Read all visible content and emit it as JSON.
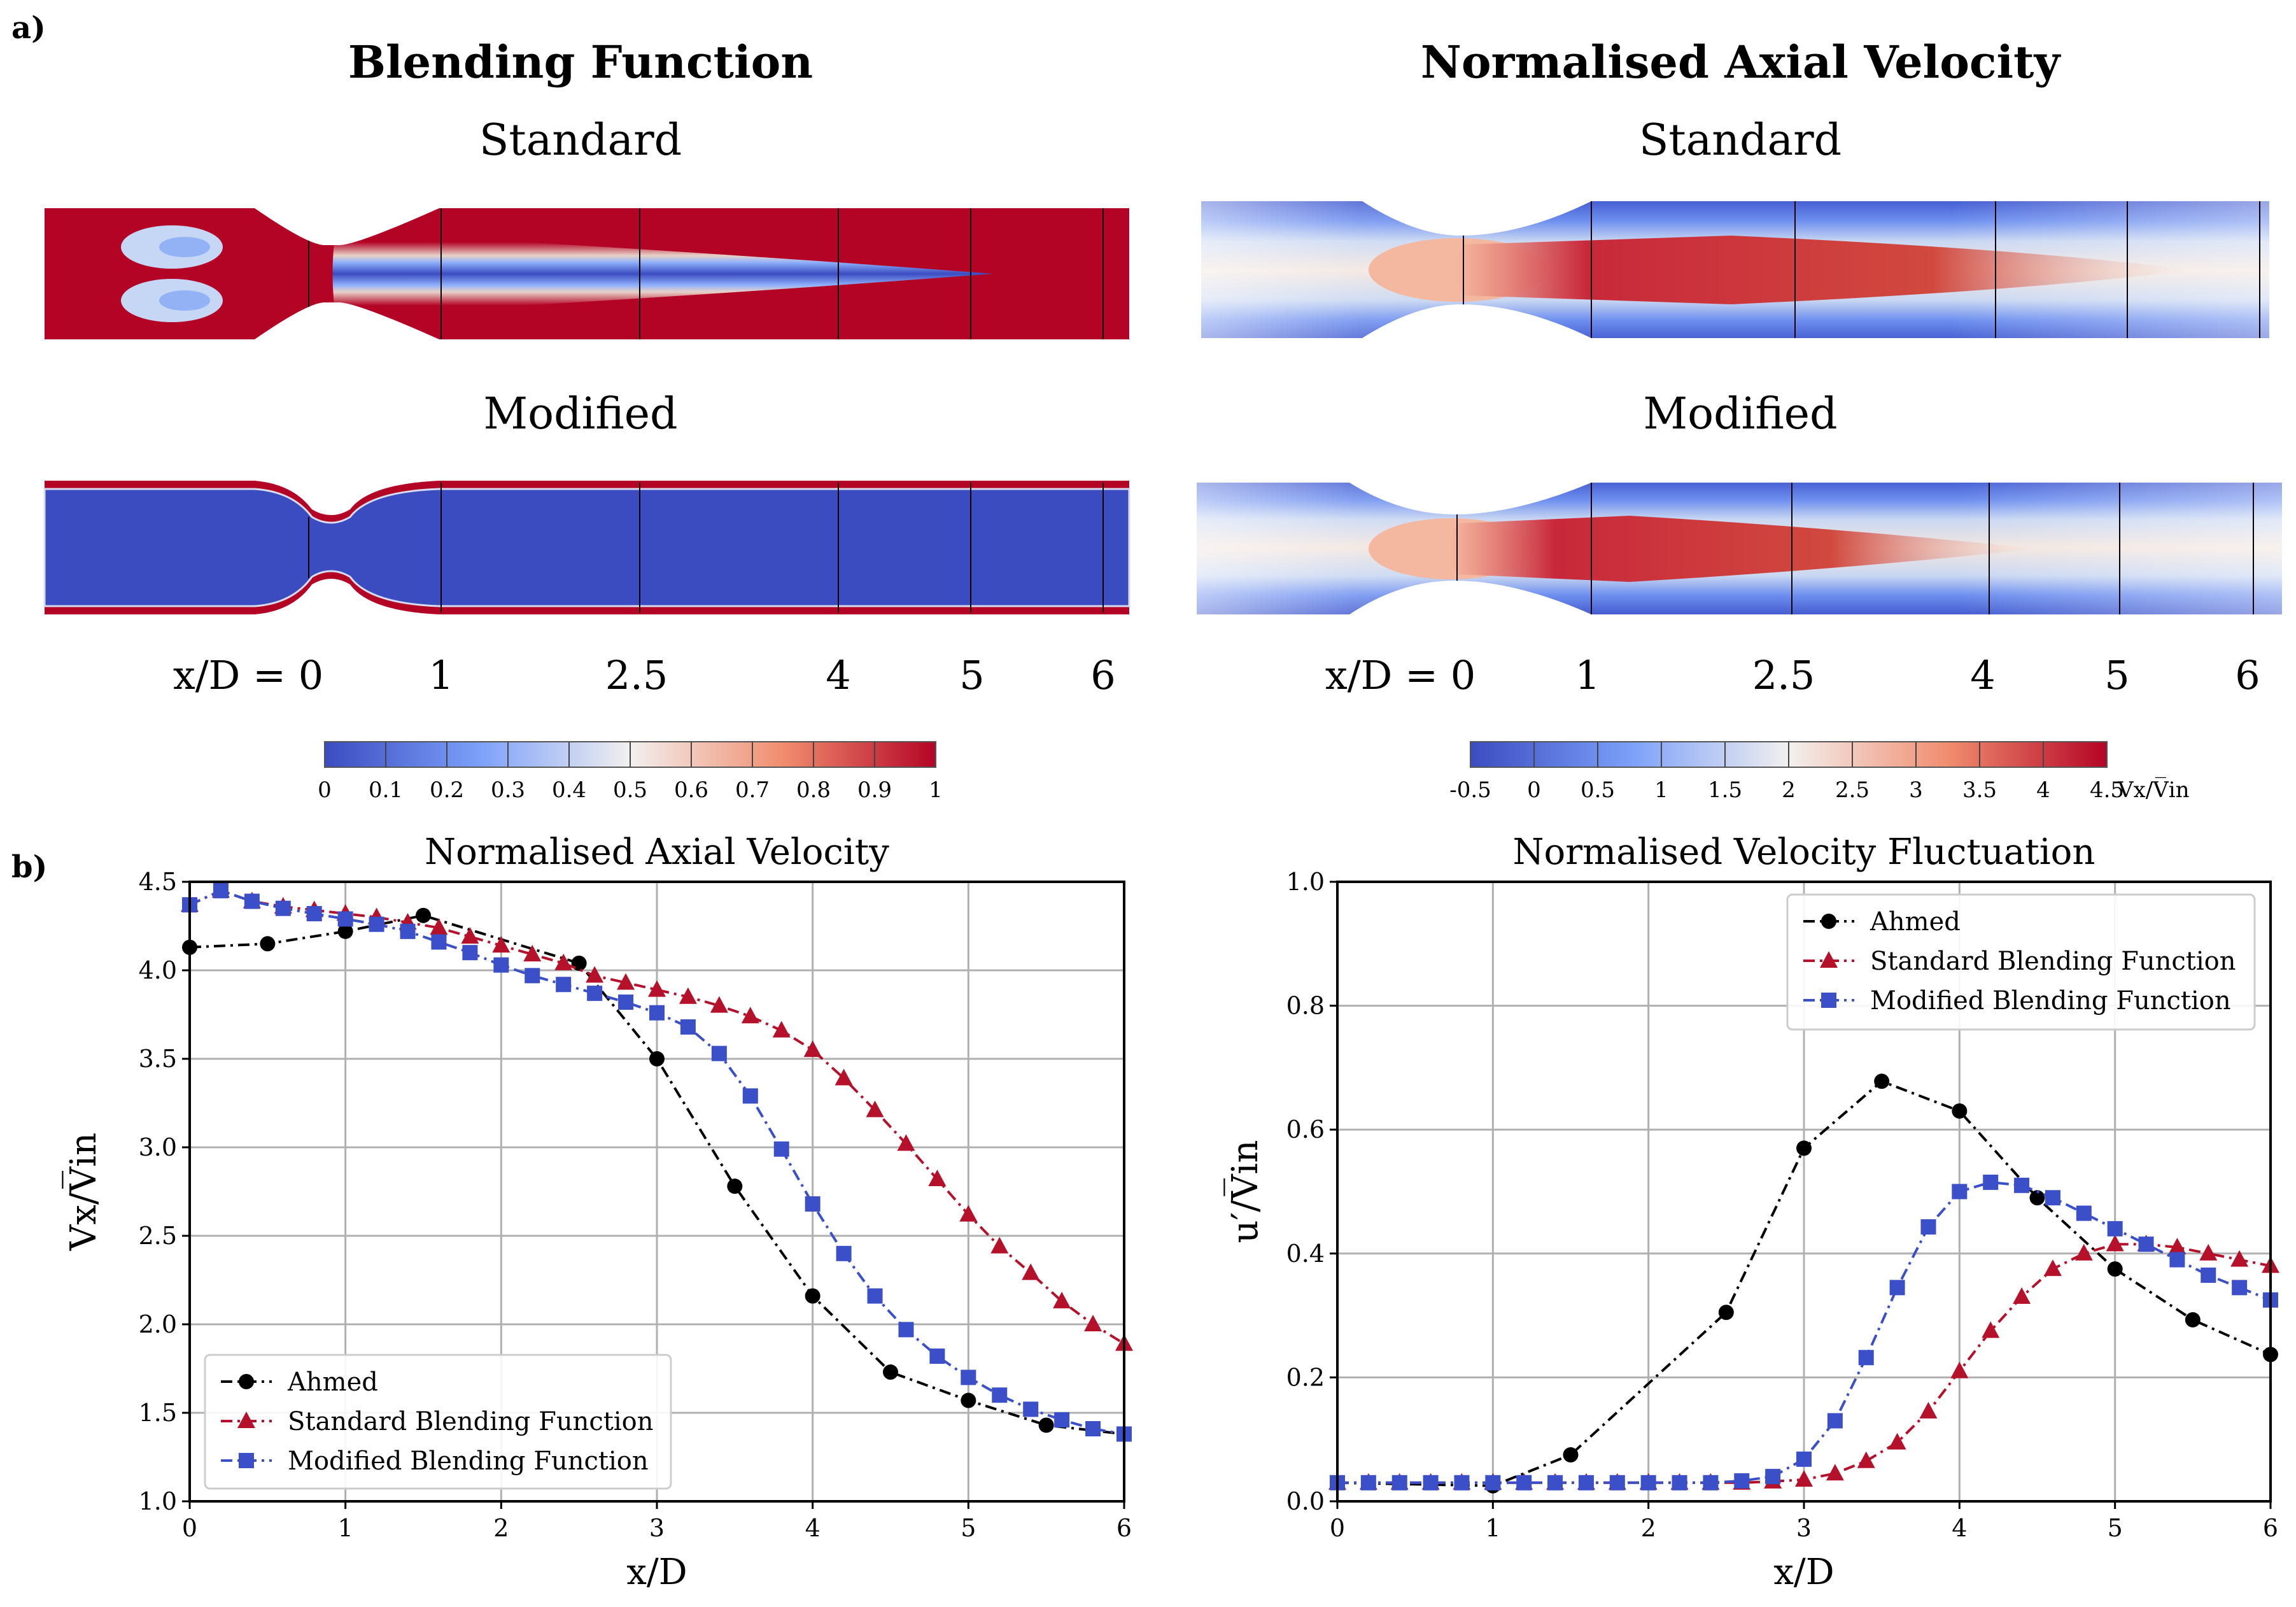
{
  "panel_labels": {
    "a": "a)",
    "b": "b)"
  },
  "field_plots": {
    "blending": {
      "title": "Blending Function",
      "standard_label": "Standard",
      "modified_label": "Modified"
    },
    "velocity": {
      "title": "Normalised Axial Velocity",
      "standard_label": "Standard",
      "modified_label": "Modified"
    },
    "section_labels": [
      "x/D = 0",
      "1",
      "2.5",
      "4",
      "5",
      "6"
    ]
  },
  "colorbars": {
    "blending": {
      "ticks": [
        "0",
        "0.1",
        "0.2",
        "0.3",
        "0.4",
        "0.5",
        "0.6",
        "0.7",
        "0.8",
        "0.9",
        "1"
      ]
    },
    "velocity": {
      "ticks": [
        "-0.5",
        "0",
        "0.5",
        "1",
        "1.5",
        "2",
        "2.5",
        "3",
        "3.5",
        "4",
        "4.5"
      ],
      "unit": "Vx/V̅in"
    }
  },
  "colors": {
    "ahmed": "#000000",
    "standard": "#b5112b",
    "modified": "#3a4fc8",
    "field_red": "#b40426",
    "field_blue": "#3b4cc0"
  },
  "chart_data": [
    {
      "type": "line",
      "title": "Normalised Axial Velocity",
      "xlabel": "x/D",
      "ylabel": "Vx/V̅in",
      "xlim": [
        0,
        6
      ],
      "ylim": [
        1.0,
        4.5
      ],
      "xticks": [
        "0",
        "1",
        "2",
        "3",
        "4",
        "5",
        "6"
      ],
      "yticks": [
        "1.0",
        "1.5",
        "2.0",
        "2.5",
        "3.0",
        "3.5",
        "4.0",
        "4.5"
      ],
      "grid": true,
      "legend_position": "lower-left",
      "series": [
        {
          "name": "Ahmed",
          "marker": "circle",
          "color": "#000000",
          "x": [
            0,
            0.5,
            1,
            1.5,
            2.5,
            3,
            3.5,
            4,
            4.5,
            5,
            5.5,
            6
          ],
          "y": [
            4.13,
            4.15,
            4.22,
            4.31,
            4.04,
            3.5,
            2.78,
            2.16,
            1.73,
            1.57,
            1.43,
            1.38
          ]
        },
        {
          "name": "Standard Blending Function",
          "marker": "triangle",
          "color": "#b5112b",
          "x": [
            0,
            0.2,
            0.4,
            0.6,
            0.8,
            1,
            1.2,
            1.4,
            1.6,
            1.8,
            2,
            2.2,
            2.4,
            2.6,
            2.8,
            3,
            3.2,
            3.4,
            3.6,
            3.8,
            4,
            4.2,
            4.4,
            4.6,
            4.8,
            5,
            5.2,
            5.4,
            5.6,
            5.8,
            6
          ],
          "y": [
            4.37,
            4.45,
            4.39,
            4.36,
            4.34,
            4.32,
            4.3,
            4.27,
            4.24,
            4.19,
            4.14,
            4.09,
            4.04,
            3.97,
            3.93,
            3.89,
            3.85,
            3.8,
            3.74,
            3.66,
            3.55,
            3.39,
            3.21,
            3.02,
            2.82,
            2.62,
            2.44,
            2.29,
            2.13,
            2.0,
            1.89
          ]
        },
        {
          "name": "Modified Blending Function",
          "marker": "square",
          "color": "#3a4fc8",
          "x": [
            0,
            0.2,
            0.4,
            0.6,
            0.8,
            1,
            1.2,
            1.4,
            1.6,
            1.8,
            2,
            2.2,
            2.4,
            2.6,
            2.8,
            3,
            3.2,
            3.4,
            3.6,
            3.8,
            4,
            4.2,
            4.4,
            4.6,
            4.8,
            5,
            5.2,
            5.4,
            5.6,
            5.8,
            6
          ],
          "y": [
            4.37,
            4.45,
            4.39,
            4.35,
            4.32,
            4.29,
            4.26,
            4.22,
            4.16,
            4.1,
            4.03,
            3.97,
            3.92,
            3.87,
            3.82,
            3.76,
            3.68,
            3.53,
            3.29,
            2.99,
            2.68,
            2.4,
            2.16,
            1.97,
            1.82,
            1.7,
            1.6,
            1.52,
            1.46,
            1.41,
            1.38
          ]
        }
      ]
    },
    {
      "type": "line",
      "title": "Normalised Velocity Fluctuation",
      "xlabel": "x/D",
      "ylabel": "u′/V̅in",
      "xlim": [
        0,
        6
      ],
      "ylim": [
        0.0,
        1.0
      ],
      "xticks": [
        "0",
        "1",
        "2",
        "3",
        "4",
        "5",
        "6"
      ],
      "yticks": [
        "0.0",
        "0.2",
        "0.4",
        "0.6",
        "0.8",
        "1.0"
      ],
      "grid": true,
      "legend_position": "top-right",
      "series": [
        {
          "name": "Ahmed",
          "marker": "circle",
          "color": "#000000",
          "x": [
            0,
            1,
            1.5,
            2.5,
            3,
            3.5,
            4,
            4.5,
            5,
            5.5,
            6
          ],
          "y": [
            0.03,
            0.025,
            0.075,
            0.305,
            0.57,
            0.678,
            0.63,
            0.49,
            0.375,
            0.293,
            0.237
          ]
        },
        {
          "name": "Standard Blending Function",
          "marker": "triangle",
          "color": "#b5112b",
          "x": [
            0,
            0.2,
            0.4,
            0.6,
            0.8,
            1,
            1.2,
            1.4,
            1.6,
            1.8,
            2,
            2.2,
            2.4,
            2.6,
            2.8,
            3,
            3.2,
            3.4,
            3.6,
            3.8,
            4,
            4.2,
            4.4,
            4.6,
            4.8,
            5,
            5.2,
            5.4,
            5.6,
            5.8,
            6
          ],
          "y": [
            0.03,
            0.03,
            0.03,
            0.03,
            0.03,
            0.03,
            0.03,
            0.03,
            0.03,
            0.03,
            0.03,
            0.03,
            0.03,
            0.03,
            0.032,
            0.035,
            0.045,
            0.065,
            0.095,
            0.145,
            0.21,
            0.275,
            0.33,
            0.375,
            0.4,
            0.415,
            0.415,
            0.41,
            0.4,
            0.39,
            0.38
          ]
        },
        {
          "name": "Modified Blending Function",
          "marker": "square",
          "color": "#3a4fc8",
          "x": [
            0,
            0.2,
            0.4,
            0.6,
            0.8,
            1,
            1.2,
            1.4,
            1.6,
            1.8,
            2,
            2.2,
            2.4,
            2.6,
            2.8,
            3,
            3.2,
            3.4,
            3.6,
            3.8,
            4,
            4.2,
            4.4,
            4.6,
            4.8,
            5,
            5.2,
            5.4,
            5.6,
            5.8,
            6
          ],
          "y": [
            0.03,
            0.03,
            0.03,
            0.03,
            0.03,
            0.03,
            0.03,
            0.03,
            0.03,
            0.03,
            0.03,
            0.03,
            0.03,
            0.033,
            0.04,
            0.068,
            0.13,
            0.232,
            0.345,
            0.443,
            0.5,
            0.515,
            0.51,
            0.49,
            0.465,
            0.44,
            0.415,
            0.39,
            0.365,
            0.345,
            0.325
          ]
        }
      ]
    }
  ]
}
